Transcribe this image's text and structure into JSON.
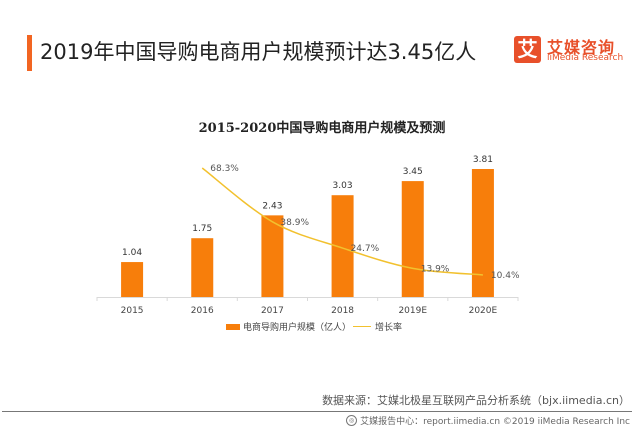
{
  "header": {
    "title": "2019年中国导购电商用户规模预计达3.45亿人",
    "accent_color": "#f26522"
  },
  "logo": {
    "mark": "艾",
    "cn": "艾媒咨询",
    "en": "iiMedia Research",
    "color": "#e8502a"
  },
  "chart_data": {
    "type": "bar",
    "title": "2015-2020中国导购电商用户规模及预测",
    "categories": [
      "2015",
      "2016",
      "2017",
      "2018",
      "2019E",
      "2020E"
    ],
    "series": [
      {
        "name": "电商导购用户规模（亿人）",
        "type": "bar",
        "color": "#f77e0b",
        "values": [
          1.04,
          1.75,
          2.43,
          3.03,
          3.45,
          3.81
        ],
        "labels": [
          "1.04",
          "1.75",
          "2.43",
          "3.03",
          "3.45",
          "3.81"
        ]
      },
      {
        "name": "增长率",
        "type": "line",
        "color": "#f2c12e",
        "values": [
          null,
          68.3,
          38.9,
          24.7,
          13.9,
          10.4
        ],
        "labels": [
          "",
          "68.3%",
          "38.9%",
          "24.7%",
          "13.9%",
          "10.4%"
        ]
      }
    ],
    "xlabel": "",
    "ylabel": "",
    "ylim": [
      0,
      4.5
    ],
    "y2lim": [
      0,
      80
    ],
    "grid": false,
    "legend_position": "bottom"
  },
  "source": {
    "text": "数据来源：艾媒北极星互联网产品分析系统（bjx.iimedia.cn）"
  },
  "footer": {
    "text": "艾媒报告中心：report.iimedia.cn  ©2019  iiMedia Research Inc"
  }
}
